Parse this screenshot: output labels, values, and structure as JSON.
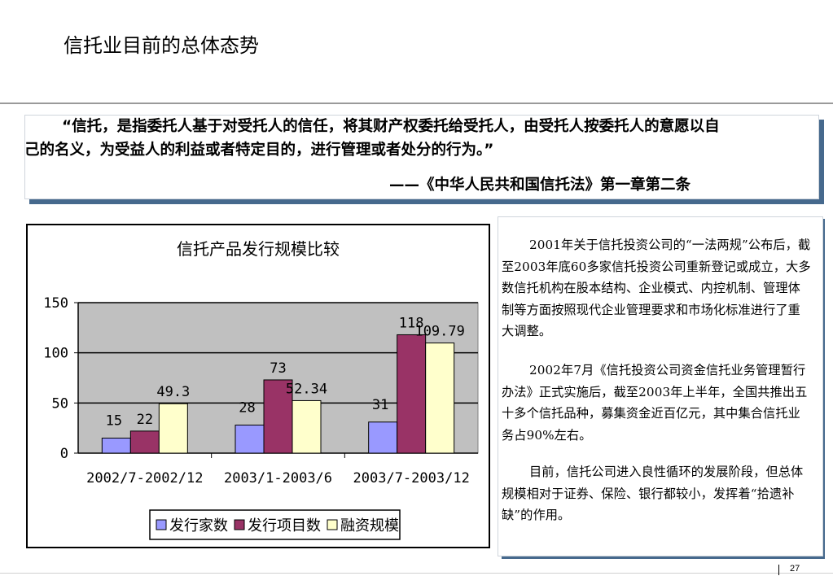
{
  "page": {
    "title": "信托业目前的总体态势",
    "page_number": "27"
  },
  "quote": {
    "line1": "“信托，是指委托人基于对受托人的信任，将其财产权委托给受托人，由受托人按委托人的意愿以自",
    "line2": "己的名义，为受益人的利益或者特定目的，进行管理或者处分的行为。”",
    "source": "——《中华人民共和国信托法》第一章第二条"
  },
  "paragraphs": [
    "2001年关于信托投资公司的“一法两规”公布后，截至2003年底60多家信托投资公司重新登记或成立，大多数信托机构在股本结构、企业模式、内控机制、管理体制等方面按照现代企业管理要求和市场化标准进行了重大调整。",
    "2002年7月《信托投资公司资金信托业务管理暂行办法》正式实施后，截至2003年上半年，全国共推出五十多个信托品种，募集资金近百亿元，其中集合信托业务占90%左右。",
    "目前，信托公司进入良性循环的发展阶段，但总体规模相对于证券、保险、银行都较小，发挥着“拾遗补缺”的作用。"
  ],
  "colors": {
    "accent_shadow": "#46698d",
    "plot_bg": "#c0c0c0"
  },
  "chart_data": {
    "type": "bar",
    "title": "信托产品发行规模比较",
    "categories": [
      "2002/7-2002/12",
      "2003/1-2003/6",
      "2003/7-2003/12"
    ],
    "series": [
      {
        "name": "发行家数",
        "values": [
          15,
          28,
          31
        ],
        "labels": [
          "15",
          "28",
          "31"
        ],
        "color": "#9999ff"
      },
      {
        "name": "发行项目数",
        "values": [
          22,
          73,
          118
        ],
        "labels": [
          "22",
          "73",
          "118"
        ],
        "color": "#993366"
      },
      {
        "name": "融资规模",
        "values": [
          49.3,
          52.34,
          109.79
        ],
        "labels": [
          "49.3",
          "52.34",
          "109.79"
        ],
        "color": "#ffffcc"
      }
    ],
    "yticks": [
      "0",
      "50",
      "100",
      "150"
    ],
    "ylim": [
      0,
      150
    ],
    "grid": true,
    "legend": "bottom"
  }
}
